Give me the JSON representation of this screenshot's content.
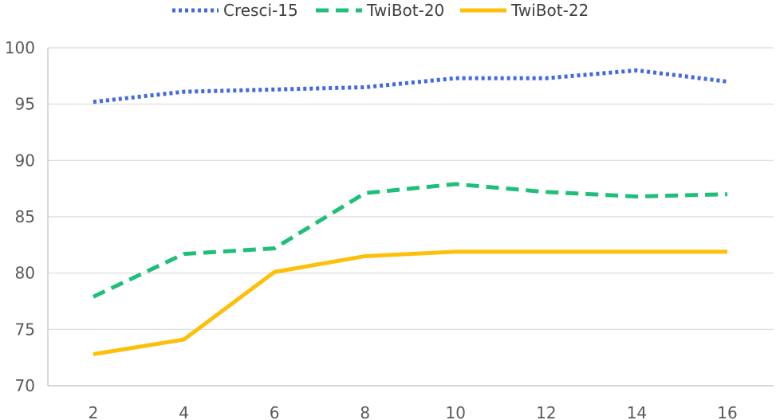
{
  "chart_data": {
    "type": "line",
    "x": [
      2,
      4,
      6,
      8,
      10,
      12,
      14,
      16
    ],
    "xticks": [
      "2",
      "4",
      "6",
      "8",
      "10",
      "12",
      "14",
      "16"
    ],
    "yticks": [
      "70",
      "75",
      "80",
      "85",
      "90",
      "95",
      "100"
    ],
    "ylim": [
      70,
      100
    ],
    "grid": "horizontal",
    "legend": "top-center",
    "series": [
      {
        "name": "Cresci-15",
        "color": "#4169e1",
        "style": "dotted",
        "values": [
          95.2,
          96.1,
          96.3,
          96.5,
          97.3,
          97.3,
          98.0,
          97.0
        ]
      },
      {
        "name": "TwiBot-20",
        "color": "#1fbf7a",
        "style": "dashed",
        "values": [
          77.9,
          81.7,
          82.2,
          87.1,
          87.9,
          87.2,
          86.8,
          87.0
        ]
      },
      {
        "name": "TwiBot-22",
        "color": "#fdc00a",
        "style": "solid",
        "values": [
          72.8,
          74.1,
          80.1,
          81.5,
          81.9,
          81.9,
          81.9,
          81.9
        ]
      }
    ]
  }
}
